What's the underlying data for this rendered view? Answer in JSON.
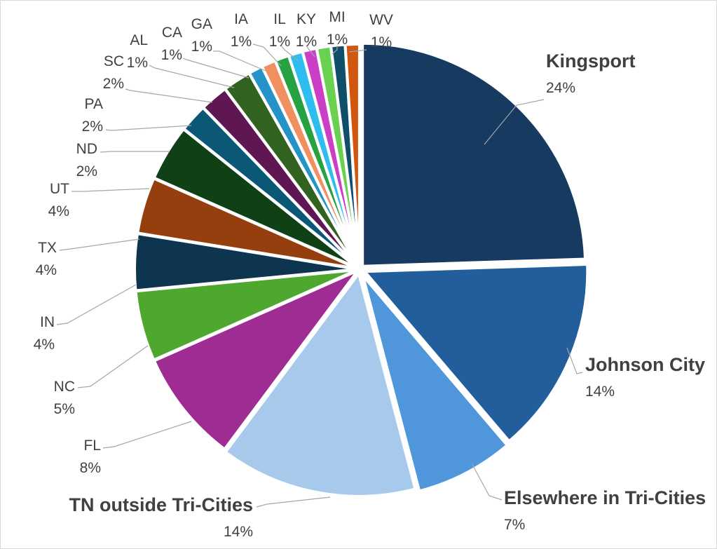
{
  "chart_data": {
    "type": "pie",
    "slices": [
      {
        "label": "Kingsport",
        "value": 24,
        "pct_label": "24%",
        "color": "#173a61",
        "emphasis": true
      },
      {
        "label": "Johnson City",
        "value": 14,
        "pct_label": "14%",
        "color": "#225e9c",
        "emphasis": true
      },
      {
        "label": "Elsewhere in Tri-Cities",
        "value": 7,
        "pct_label": "7%",
        "color": "#5096da",
        "emphasis": true
      },
      {
        "label": "TN outside Tri-Cities",
        "value": 14,
        "pct_label": "14%",
        "color": "#a7caec",
        "emphasis": true
      },
      {
        "label": "FL",
        "value": 8,
        "pct_label": "8%",
        "color": "#9f2c93"
      },
      {
        "label": "NC",
        "value": 5,
        "pct_label": "5%",
        "color": "#4ea72e"
      },
      {
        "label": "IN",
        "value": 4,
        "pct_label": "4%",
        "color": "#0e3550"
      },
      {
        "label": "TX",
        "value": 4,
        "pct_label": "4%",
        "color": "#963f0e"
      },
      {
        "label": "UT",
        "value": 4,
        "pct_label": "4%",
        "color": "#0f4016"
      },
      {
        "label": "ND",
        "value": 2,
        "pct_label": "2%",
        "color": "#0b5776"
      },
      {
        "label": "PA",
        "value": 2,
        "pct_label": "2%",
        "color": "#5e1753"
      },
      {
        "label": "SC",
        "value": 2,
        "pct_label": "2%",
        "color": "#326220"
      },
      {
        "label": "AL",
        "value": 1,
        "pct_label": "1%",
        "color": "#2593c7"
      },
      {
        "label": "CA",
        "value": 1,
        "pct_label": "1%",
        "color": "#f09060"
      },
      {
        "label": "GA",
        "value": 1,
        "pct_label": "1%",
        "color": "#26a242"
      },
      {
        "label": "IA",
        "value": 1,
        "pct_label": "1%",
        "color": "#2fbdf0"
      },
      {
        "label": "IL",
        "value": 1,
        "pct_label": "1%",
        "color": "#cb3fc7"
      },
      {
        "label": "KY",
        "value": 1,
        "pct_label": "1%",
        "color": "#6ad150"
      },
      {
        "label": "MI",
        "value": 1,
        "pct_label": "1%",
        "color": "#0f4f6a"
      },
      {
        "label": "WV",
        "value": 1,
        "pct_label": "1%",
        "color": "#d1560e"
      }
    ],
    "title": "",
    "legend": "none",
    "data_labels": "outside-with-leaders"
  }
}
